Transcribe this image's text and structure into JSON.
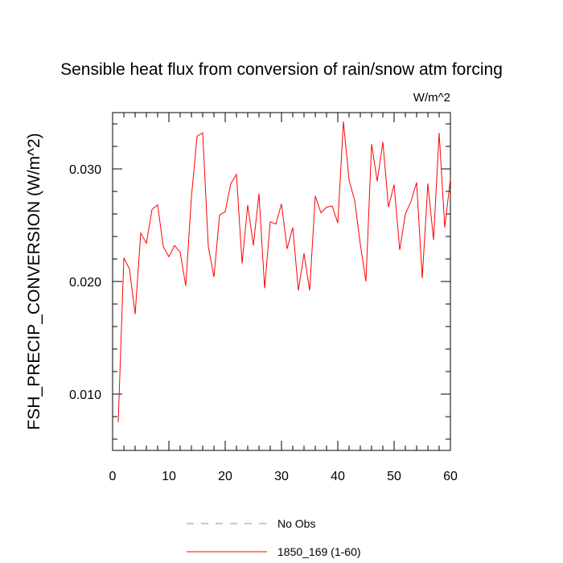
{
  "chart_data": {
    "type": "line",
    "title": "Sensible heat flux from conversion of rain/snow atm forcing",
    "units_label": "W/m^2",
    "ylabel": "FSH_PRECIP_CONVERSION  (W/m^2)",
    "xlabel": "",
    "xlim": [
      0,
      60
    ],
    "ylim": [
      0.005,
      0.035
    ],
    "x_ticks": [
      0,
      10,
      20,
      30,
      40,
      50,
      60
    ],
    "x_tick_labels": [
      "0",
      "10",
      "20",
      "30",
      "40",
      "50",
      "60"
    ],
    "y_ticks": [
      0.01,
      0.02,
      0.03
    ],
    "y_tick_labels": [
      "0.010",
      "0.020",
      "0.030"
    ],
    "grid": false,
    "series": [
      {
        "name": "No Obs",
        "color": "#8080ff",
        "dash": true,
        "x": [],
        "values": []
      },
      {
        "name": "1850_169 (1-60)",
        "color": "#ff0000",
        "dash": false,
        "x": [
          1,
          2,
          3,
          4,
          5,
          6,
          7,
          8,
          9,
          10,
          11,
          12,
          13,
          14,
          15,
          16,
          17,
          18,
          19,
          20,
          21,
          22,
          23,
          24,
          25,
          26,
          27,
          28,
          29,
          30,
          31,
          32,
          33,
          34,
          35,
          36,
          37,
          38,
          39,
          40,
          41,
          42,
          43,
          44,
          45,
          46,
          47,
          48,
          49,
          50,
          51,
          52,
          53,
          54,
          55,
          56,
          57,
          58,
          59,
          60
        ],
        "values": [
          0.0075,
          0.0221,
          0.0211,
          0.0171,
          0.0243,
          0.0234,
          0.0264,
          0.0268,
          0.0231,
          0.0222,
          0.0232,
          0.0226,
          0.0196,
          0.0275,
          0.0329,
          0.0332,
          0.0231,
          0.0204,
          0.0259,
          0.0262,
          0.0287,
          0.0295,
          0.0216,
          0.0268,
          0.0232,
          0.0278,
          0.0194,
          0.0253,
          0.0251,
          0.0269,
          0.0229,
          0.0248,
          0.0192,
          0.0225,
          0.0192,
          0.0276,
          0.0261,
          0.0266,
          0.0267,
          0.0252,
          0.0342,
          0.029,
          0.0272,
          0.0233,
          0.02,
          0.0322,
          0.0289,
          0.0324,
          0.0266,
          0.0286,
          0.0228,
          0.026,
          0.0271,
          0.0288,
          0.0203,
          0.0287,
          0.0237,
          0.0332,
          0.0248,
          0.0291
        ]
      }
    ],
    "legend_position": "bottom-center"
  }
}
